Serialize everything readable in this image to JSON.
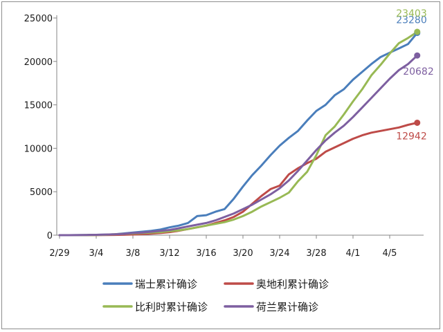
{
  "chart_data": {
    "type": "line",
    "title": "",
    "xlabel": "",
    "ylabel": "",
    "ylim": [
      0,
      25000
    ],
    "yticks": [
      "0",
      "5000",
      "10000",
      "15000",
      "20000",
      "25000"
    ],
    "xticks": [
      "2/29",
      "3/4",
      "3/8",
      "3/12",
      "3/16",
      "3/20",
      "3/24",
      "3/28",
      "4/1",
      "4/5"
    ],
    "legend_position": "bottom",
    "grid": false,
    "series": [
      {
        "name": "瑞士累计确诊",
        "color": "#4a7ebb",
        "end_label": "23280",
        "values": [
          0,
          0,
          10,
          20,
          40,
          60,
          100,
          200,
          300,
          400,
          500,
          650,
          900,
          1100,
          1400,
          2200,
          2300,
          2700,
          3000,
          4200,
          5600,
          6900,
          8000,
          9200,
          10300,
          11200,
          12000,
          13200,
          14300,
          15000,
          16100,
          16800,
          17900,
          18800,
          19700,
          20500,
          21000,
          21500,
          22000,
          23280
        ]
      },
      {
        "name": "奥地利累计确诊",
        "color": "#be4b48",
        "end_label": "12942",
        "values": [
          0,
          0,
          0,
          0,
          10,
          20,
          30,
          50,
          80,
          120,
          180,
          250,
          350,
          500,
          700,
          900,
          1100,
          1400,
          1700,
          2100,
          2700,
          3600,
          4500,
          5300,
          5700,
          7000,
          7700,
          8300,
          8800,
          9600,
          10100,
          10600,
          11100,
          11500,
          11800,
          12000,
          12200,
          12400,
          12700,
          12942
        ]
      },
      {
        "name": "比利时累计确诊",
        "color": "#98b954",
        "end_label": "23403",
        "values": [
          0,
          0,
          0,
          10,
          20,
          50,
          100,
          150,
          200,
          250,
          300,
          350,
          450,
          550,
          700,
          900,
          1100,
          1300,
          1500,
          1800,
          2200,
          2700,
          3300,
          3800,
          4300,
          4900,
          6200,
          7300,
          9200,
          11500,
          12500,
          13900,
          15400,
          16800,
          18400,
          19600,
          20900,
          22100,
          22700,
          23403
        ]
      },
      {
        "name": "荷兰累计确诊",
        "color": "#7d5fa0",
        "end_label": "20682",
        "values": [
          0,
          0,
          10,
          20,
          40,
          70,
          100,
          150,
          250,
          300,
          400,
          500,
          600,
          800,
          1000,
          1200,
          1400,
          1700,
          2100,
          2500,
          3000,
          3500,
          4100,
          4700,
          5400,
          6300,
          7400,
          8600,
          9800,
          10900,
          11800,
          12600,
          13600,
          14700,
          15800,
          16900,
          18000,
          19000,
          19700,
          20682
        ]
      }
    ]
  }
}
